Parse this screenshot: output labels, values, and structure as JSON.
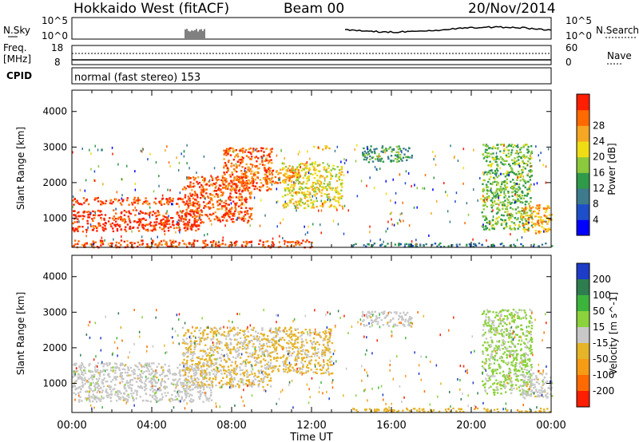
{
  "header": {
    "radar": "Hokkaido West (fitACF)",
    "beam": "Beam 00",
    "date": "20/Nov/2014"
  },
  "noise_panel": {
    "left_label": "N.Sky",
    "left_ticks": [
      "10^5",
      "10^0"
    ],
    "right_ticks": [
      "10^5",
      "10^0"
    ],
    "right_label": "N.Search"
  },
  "freq_panel": {
    "left_label_1": "Freq.",
    "left_label_2": "[MHz]",
    "left_ticks": [
      "18",
      "8"
    ],
    "right_ticks": [
      "60",
      "0"
    ],
    "right_label": "Nave",
    "cpid_label": "CPID",
    "cpid_text": "normal (fast stereo) 153"
  },
  "colors": {
    "power_scale": [
      "#0000ff",
      "#1e4fc8",
      "#3c7a8c",
      "#2f9a4a",
      "#8cc83c",
      "#f0dc14",
      "#f5a623",
      "#ff6a00",
      "#ff1e00"
    ],
    "velocity_scale": [
      "#1e3cc8",
      "#2e7d4f",
      "#3cb43c",
      "#8cd23c",
      "#c8c8c8",
      "#e6b428",
      "#f59b14",
      "#ff6a00",
      "#ff1e00"
    ]
  },
  "chart_data": [
    {
      "type": "heatmap",
      "name": "power",
      "ylabel": "Slant Range [km]",
      "yticks": [
        1000,
        2000,
        3000,
        4000
      ],
      "ylim": [
        180,
        4600
      ],
      "xticks": [
        "00:00",
        "04:00",
        "08:00",
        "12:00",
        "16:00",
        "20:00",
        "00:00"
      ],
      "xlim_hours": [
        0,
        24
      ],
      "colorbar_label": "Power [dB]",
      "colorbar_ticks": [
        "4",
        "8",
        "12",
        "16",
        "20",
        "24",
        "28"
      ],
      "colorbar_range": [
        0,
        30
      ],
      "regions": [
        {
          "t": [
            0.0,
            6.5
          ],
          "r": [
            650,
            1250
          ],
          "power": 28
        },
        {
          "t": [
            0.0,
            5.5
          ],
          "r": [
            1400,
            1600
          ],
          "power": 27
        },
        {
          "t": [
            5.5,
            9.0
          ],
          "r": [
            900,
            2200
          ],
          "power": 26
        },
        {
          "t": [
            7.5,
            10.0
          ],
          "r": [
            1800,
            3000
          ],
          "power": 25
        },
        {
          "t": [
            9.5,
            11.5
          ],
          "r": [
            2000,
            2400
          ],
          "power": 24
        },
        {
          "t": [
            0.0,
            12.0
          ],
          "r": [
            200,
            400
          ],
          "power": 26
        },
        {
          "t": [
            10.5,
            13.5
          ],
          "r": [
            1300,
            2600
          ],
          "power": 18
        },
        {
          "t": [
            12.0,
            13.0
          ],
          "r": [
            2950,
            3050
          ],
          "power": 20
        },
        {
          "t": [
            14.5,
            17.0
          ],
          "r": [
            2600,
            3050
          ],
          "power": 11
        },
        {
          "t": [
            14.0,
            24.0
          ],
          "r": [
            220,
            320
          ],
          "power": 9
        },
        {
          "t": [
            20.5,
            23.0
          ],
          "r": [
            700,
            3100
          ],
          "power": 14
        },
        {
          "t": [
            22.5,
            24.0
          ],
          "r": [
            600,
            1400
          ],
          "power": 22
        }
      ]
    },
    {
      "type": "heatmap",
      "name": "velocity",
      "ylabel": "Slant Range [km]",
      "yticks": [
        1000,
        2000,
        3000,
        4000
      ],
      "ylim": [
        180,
        4600
      ],
      "xticks": [
        "00:00",
        "04:00",
        "08:00",
        "12:00",
        "16:00",
        "20:00",
        "00:00"
      ],
      "xlabel": "Time UT",
      "colorbar_label": "Velocity [m s^-1]",
      "colorbar_ticks": [
        "200",
        "100",
        "50",
        "15",
        "-15",
        "-50",
        "-100",
        "-200"
      ],
      "regions": [
        {
          "t": [
            0.0,
            7.0
          ],
          "r": [
            500,
            1600
          ],
          "velocity": 0
        },
        {
          "t": [
            5.5,
            10.0
          ],
          "r": [
            900,
            2600
          ],
          "velocity": -30
        },
        {
          "t": [
            10.0,
            13.0
          ],
          "r": [
            1300,
            2600
          ],
          "velocity": -40
        },
        {
          "t": [
            14.5,
            17.0
          ],
          "r": [
            2600,
            3050
          ],
          "velocity": 0
        },
        {
          "t": [
            14.0,
            24.0
          ],
          "r": [
            220,
            320
          ],
          "velocity": -60
        },
        {
          "t": [
            20.5,
            23.0
          ],
          "r": [
            700,
            3100
          ],
          "velocity": 40
        },
        {
          "t": [
            22.5,
            24.0
          ],
          "r": [
            600,
            1400
          ],
          "velocity": 0
        }
      ]
    }
  ]
}
